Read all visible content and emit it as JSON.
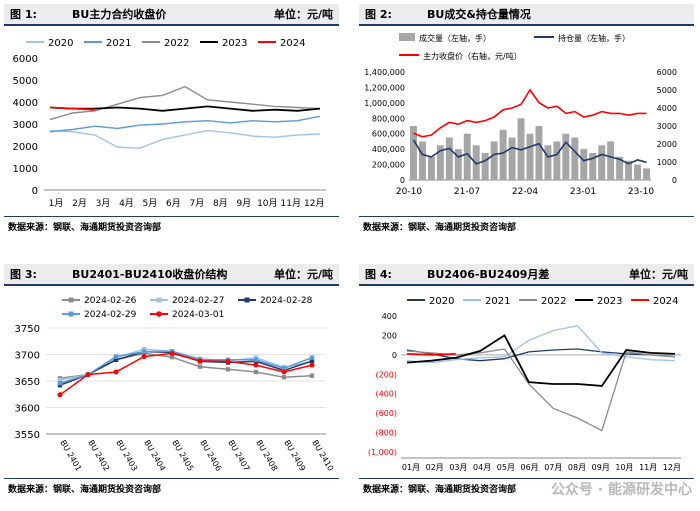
{
  "source_text": "数据来源：钢联、海通期货投资咨询部",
  "watermark": "公众号 · 能源研发中心",
  "panels": [
    {
      "figure": "图  1:",
      "title": "BU主力合约收盘价",
      "unit": "单位：元/吨",
      "chart_data": {
        "type": "line",
        "ylim": [
          0,
          6000
        ],
        "yticks": [
          0,
          1000,
          2000,
          3000,
          4000,
          5000,
          6000
        ],
        "x_labels": [
          "1月",
          "2月",
          "3月",
          "4月",
          "5月",
          "6月",
          "7月",
          "8月",
          "9月",
          "10月",
          "11月",
          "12月"
        ],
        "legend_position": "top",
        "series": [
          {
            "name": "2020",
            "color": "#9ec3e6",
            "values": [
              2700,
              2650,
              2500,
              1950,
              1900,
              2300,
              2500,
              2700,
              2600,
              2450,
              2400,
              2500,
              2550
            ]
          },
          {
            "name": "2021",
            "color": "#5b9bd5",
            "values": [
              2650,
              2750,
              2900,
              2800,
              2950,
              3000,
              3100,
              3150,
              3050,
              3150,
              3100,
              3150,
              3350
            ]
          },
          {
            "name": "2022",
            "color": "#8c8c8c",
            "values": [
              3200,
              3500,
              3600,
              3900,
              4200,
              4300,
              4700,
              4100,
              4000,
              3900,
              3800,
              3750,
              3700
            ]
          },
          {
            "name": "2023",
            "color": "#000000",
            "values": [
              3750,
              3700,
              3700,
              3750,
              3700,
              3600,
              3700,
              3800,
              3700,
              3600,
              3650,
              3600,
              3700
            ]
          },
          {
            "name": "2024",
            "color": "#ff0000",
            "values": [
              3750,
              3700,
              3650
            ]
          }
        ]
      }
    },
    {
      "figure": "图  2:",
      "title": "BU成交&持仓量情况",
      "unit": "",
      "chart_data": {
        "type": "bar+line",
        "ylim_left": [
          0,
          1400000
        ],
        "yticks_left": [
          0,
          200000,
          400000,
          600000,
          800000,
          1000000,
          1200000,
          1400000
        ],
        "ylim_right": [
          0,
          6000
        ],
        "yticks_right": [
          0,
          1000,
          2000,
          3000,
          4000,
          5000,
          6000
        ],
        "x_labels": [
          "20-10",
          "21-07",
          "22-04",
          "23-01",
          "23-10"
        ],
        "legend_position": "top",
        "series": [
          {
            "name": "成交量（左轴，手）",
            "color": "#a6a6a6",
            "type": "bar",
            "values": [
              700000,
              500000,
              300000,
              450000,
              550000,
              400000,
              600000,
              450000,
              350000,
              500000,
              650000,
              550000,
              800000,
              600000,
              700000,
              450000,
              500000,
              600000,
              550000,
              400000,
              350000,
              450000,
              500000,
              300000,
              250000,
              200000,
              150000
            ]
          },
          {
            "name": "持仓量（左轴，手）",
            "color": "#1f3a6b",
            "type": "line",
            "values": [
              520000,
              330000,
              300000,
              380000,
              410000,
              300000,
              340000,
              210000,
              250000,
              330000,
              350000,
              420000,
              390000,
              430000,
              470000,
              300000,
              330000,
              490000,
              370000,
              250000,
              280000,
              330000,
              300000,
              270000,
              210000,
              260000,
              230000
            ]
          },
          {
            "name": "主力收盘价（右轴，元/吨）",
            "color": "#ff0000",
            "type": "line",
            "axis": "right",
            "values": [
              2600,
              2400,
              2500,
              2900,
              3200,
              3100,
              3300,
              3200,
              3300,
              3500,
              3900,
              4000,
              4200,
              5000,
              4300,
              4000,
              4100,
              3700,
              3800,
              3500,
              3600,
              3800,
              3700,
              3700,
              3600,
              3700,
              3700
            ]
          }
        ]
      }
    },
    {
      "figure": "图  3:",
      "title": "BU2401-BU2410收盘价结构",
      "unit": "单位：元/吨",
      "chart_data": {
        "type": "line",
        "ylim": [
          3550,
          3750
        ],
        "yticks": [
          3550,
          3600,
          3650,
          3700,
          3750
        ],
        "categories": [
          "BU 2401",
          "BU 2402",
          "BU 2403",
          "BU 2404",
          "BU 2405",
          "BU 2406",
          "BU 2407",
          "BU 2408",
          "BU 2409",
          "BU 2410"
        ],
        "legend_position": "top",
        "series": [
          {
            "name": "2024-02-26",
            "color": "#8c8c8c",
            "values": [
              3655,
              3662,
              3690,
              3702,
              3695,
              3677,
              3672,
              3667,
              3657,
              3660
            ]
          },
          {
            "name": "2024-02-27",
            "color": "#9ec3e6",
            "values": [
              3652,
              3662,
              3694,
              3710,
              3706,
              3692,
              3688,
              3694,
              3676,
              3686
            ]
          },
          {
            "name": "2024-02-28",
            "color": "#1f3a6b",
            "values": [
              3642,
              3662,
              3690,
              3705,
              3704,
              3687,
              3685,
              3687,
              3670,
              3688
            ]
          },
          {
            "name": "2024-02-29",
            "color": "#5b9bd5",
            "values": [
              3646,
              3662,
              3696,
              3705,
              3706,
              3690,
              3690,
              3690,
              3674,
              3694
            ]
          },
          {
            "name": "2024-03-01",
            "color": "#ff0000",
            "values": [
              3624,
              3662,
              3667,
              3696,
              3702,
              3688,
              3687,
              3680,
              3667,
              3680
            ]
          }
        ]
      }
    },
    {
      "figure": "图  4:",
      "title": "BU2406-BU2409月差",
      "unit": "单位：元/吨",
      "chart_data": {
        "type": "line",
        "ylim": [
          -1000,
          400
        ],
        "yticks": [
          -1000,
          -800,
          -600,
          -400,
          -200,
          0,
          200,
          400
        ],
        "ytick_labels": [
          "(1,000)",
          "(800)",
          "(600)",
          "(400)",
          "(200)",
          "0",
          "200",
          "400"
        ],
        "x_labels": [
          "01月",
          "02月",
          "03月",
          "04月",
          "05月",
          "06月",
          "07月",
          "08月",
          "09月",
          "10月",
          "11月",
          "12月"
        ],
        "legend_position": "top",
        "series": [
          {
            "name": "2020",
            "color": "#1f3a6b",
            "values": [
              50,
              10,
              -40,
              -60,
              -40,
              30,
              50,
              60,
              30,
              10,
              0,
              -20
            ]
          },
          {
            "name": "2021",
            "color": "#9ec3e6",
            "values": [
              -60,
              -80,
              -50,
              -30,
              -20,
              150,
              250,
              300,
              20,
              -20,
              -50,
              -60
            ]
          },
          {
            "name": "2022",
            "color": "#8c8c8c",
            "values": [
              40,
              20,
              0,
              20,
              60,
              -300,
              -550,
              -650,
              -780,
              30,
              0,
              -20
            ]
          },
          {
            "name": "2023",
            "color": "#000000",
            "values": [
              -80,
              -60,
              -30,
              40,
              200,
              -280,
              -300,
              -300,
              -320,
              50,
              20,
              10
            ]
          },
          {
            "name": "2024",
            "color": "#ff0000",
            "values": [
              10,
              0,
              10
            ]
          }
        ]
      }
    }
  ]
}
